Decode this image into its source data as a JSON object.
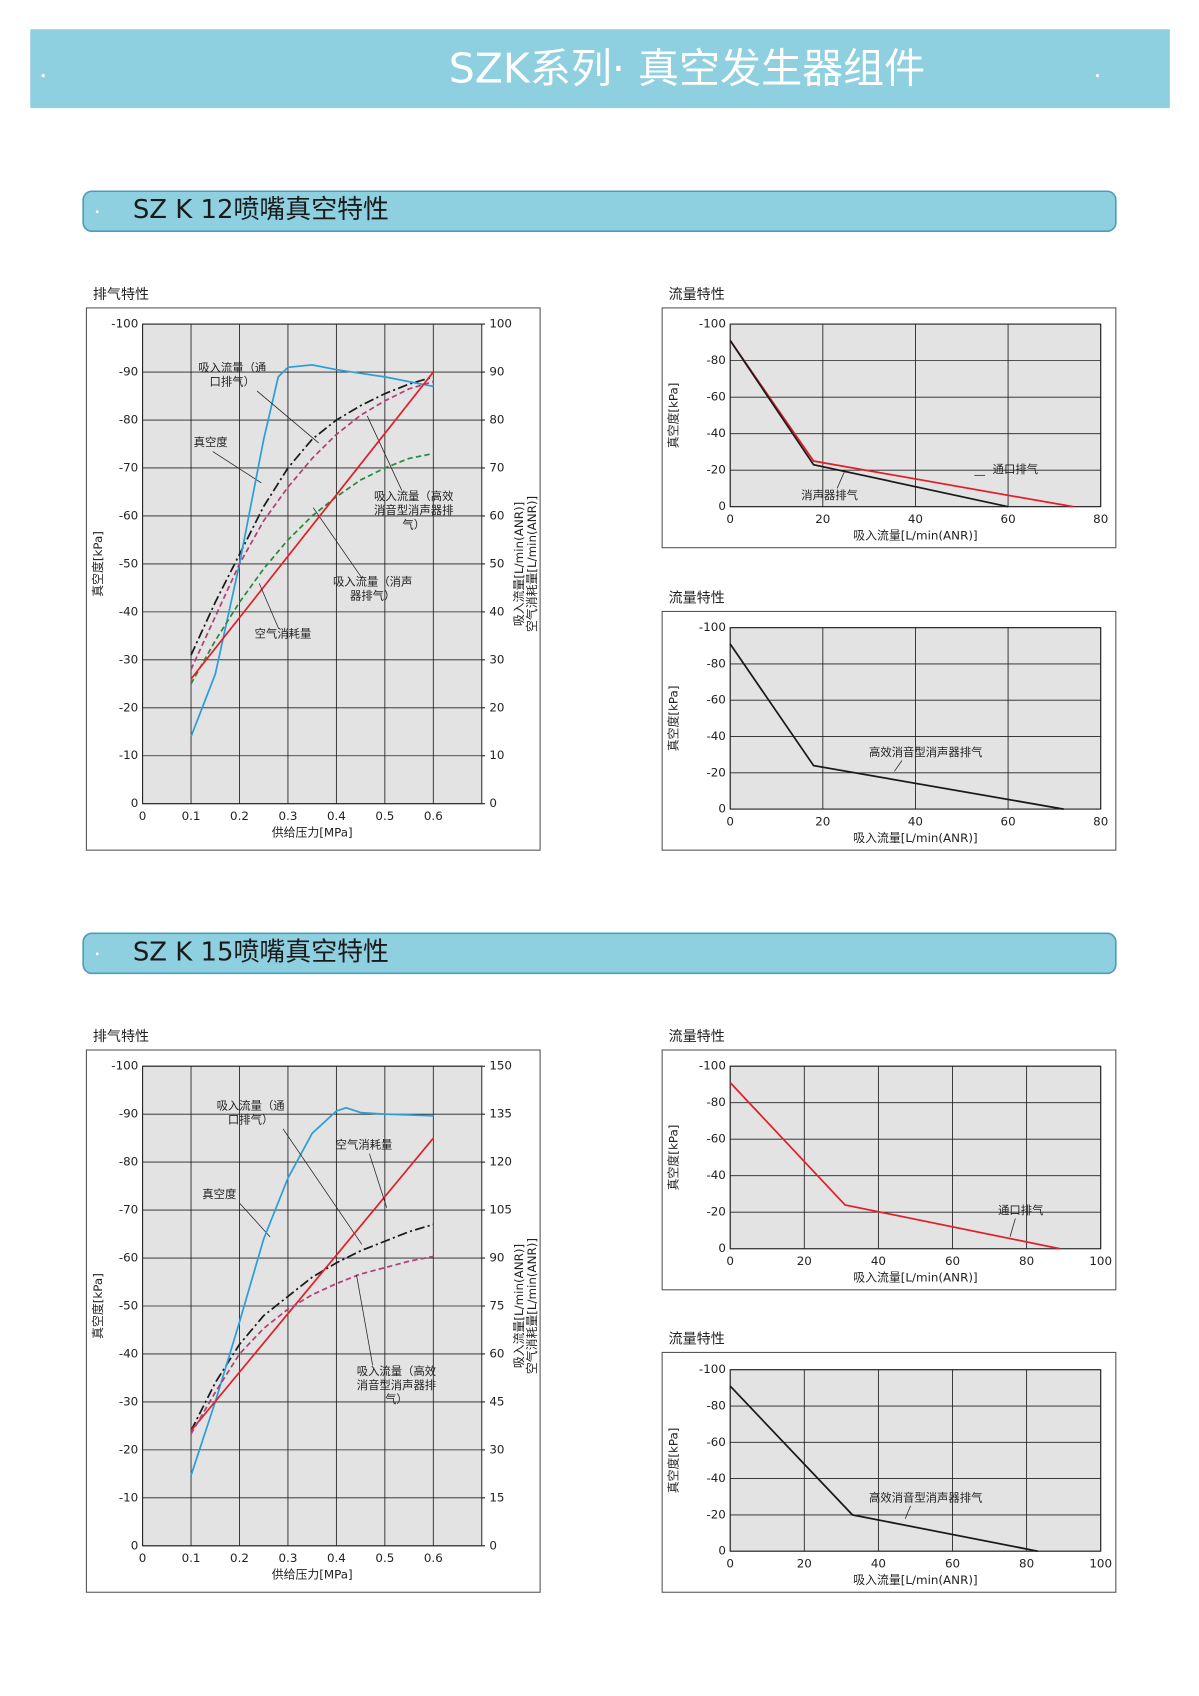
{
  "header": {
    "title": "SZK系列· 真空发生器组件"
  },
  "sections": [
    {
      "title": "SZ K 12喷嘴真空特性"
    },
    {
      "title": "SZ K 15喷嘴真空特性"
    }
  ],
  "chart_data": [
    {
      "type": "line",
      "title": "排气特性",
      "xlabel": "供给压力[MPa]",
      "ylabel": "真空度[kPa]",
      "y2labels": [
        "吸入流量[L/min(ANR)]",
        "空气消耗量[L/min(ANR)]"
      ],
      "xlim": [
        0,
        0.7
      ],
      "xticks": [
        0,
        0.1,
        0.2,
        0.3,
        0.4,
        0.5,
        0.6
      ],
      "ylim": [
        0,
        -100
      ],
      "yticks": [
        0,
        -10,
        -20,
        -30,
        -40,
        -50,
        -60,
        -70,
        -80,
        -90,
        -100
      ],
      "y2lim": [
        0,
        100
      ],
      "y2ticks": [
        0,
        10,
        20,
        30,
        40,
        50,
        60,
        70,
        80,
        90,
        100
      ],
      "grid": true,
      "series": [
        {
          "name": "真空度",
          "color": "#1a1a1a",
          "linestyle": "dashdot",
          "x": [
            0.1,
            0.15,
            0.2,
            0.25,
            0.3,
            0.35,
            0.4,
            0.45,
            0.5,
            0.55,
            0.6
          ],
          "values": [
            -31,
            -42,
            -52,
            -62,
            -70,
            -76,
            -80,
            -83,
            -85.5,
            -87.5,
            -89
          ]
        },
        {
          "name": "吸入流量（通口排气）",
          "color": "#2a9fd8",
          "linestyle": "solid",
          "axis": "y2",
          "x": [
            0.1,
            0.15,
            0.2,
            0.25,
            0.28,
            0.3,
            0.35,
            0.4,
            0.5,
            0.6
          ],
          "values": [
            14,
            27,
            50,
            76,
            89,
            91,
            91.5,
            90.5,
            89,
            87
          ]
        },
        {
          "name": "吸入流量（高效消音型消声器排气）",
          "color": "#b0407a",
          "linestyle": "dashed",
          "axis": "y2",
          "x": [
            0.1,
            0.15,
            0.2,
            0.25,
            0.3,
            0.35,
            0.4,
            0.45,
            0.5,
            0.55,
            0.6
          ],
          "values": [
            28,
            39,
            50,
            59,
            66,
            72,
            77,
            81,
            84,
            86.5,
            88
          ]
        },
        {
          "name": "吸入流量（消声器排气）",
          "color": "#2a8a3a",
          "linestyle": "dashed",
          "axis": "y2",
          "x": [
            0.1,
            0.15,
            0.2,
            0.25,
            0.3,
            0.35,
            0.4,
            0.45,
            0.5,
            0.55,
            0.6
          ],
          "values": [
            25,
            34,
            42,
            49,
            55,
            60,
            64,
            67.5,
            70,
            72,
            73
          ]
        },
        {
          "name": "空气消耗量",
          "color": "#e0202a",
          "linestyle": "solid",
          "axis": "y2",
          "x": [
            0.1,
            0.6
          ],
          "values": [
            26,
            90
          ]
        }
      ]
    },
    {
      "type": "line",
      "title": "流量特性",
      "xlabel": "吸入流量[L/min(ANR)]",
      "ylabel": "真空度[kPa]",
      "xlim": [
        0,
        80
      ],
      "xticks": [
        0,
        20,
        40,
        60,
        80
      ],
      "ylim": [
        0,
        -100
      ],
      "yticks": [
        0,
        -20,
        -40,
        -60,
        -80,
        -100
      ],
      "grid": true,
      "series": [
        {
          "name": "通口排气",
          "color": "#e0202a",
          "linestyle": "solid",
          "x": [
            0,
            18,
            74
          ],
          "values": [
            -91,
            -25,
            0
          ]
        },
        {
          "name": "消声器排气",
          "color": "#1a1a1a",
          "linestyle": "solid",
          "x": [
            0,
            18,
            60
          ],
          "values": [
            -91,
            -23,
            0
          ]
        }
      ]
    },
    {
      "type": "line",
      "title": "流量特性",
      "xlabel": "吸入流量[L/min(ANR)]",
      "ylabel": "真空度[kPa]",
      "xlim": [
        0,
        80
      ],
      "xticks": [
        0,
        20,
        40,
        60,
        80
      ],
      "ylim": [
        0,
        -100
      ],
      "yticks": [
        0,
        -20,
        -40,
        -60,
        -80,
        -100
      ],
      "grid": true,
      "series": [
        {
          "name": "高效消音型消声器排气",
          "color": "#1a1a1a",
          "linestyle": "solid",
          "x": [
            0,
            18,
            72
          ],
          "values": [
            -91,
            -24,
            0
          ]
        }
      ]
    },
    {
      "type": "line",
      "title": "排气特性",
      "xlabel": "供给压力[MPa]",
      "ylabel": "真空度[kPa]",
      "y2labels": [
        "吸入流量[L/min(ANR)]",
        "空气消耗量[L/min(ANR)]"
      ],
      "xlim": [
        0,
        0.7
      ],
      "xticks": [
        0,
        0.1,
        0.2,
        0.3,
        0.4,
        0.5,
        0.6
      ],
      "ylim": [
        0,
        -100
      ],
      "yticks": [
        0,
        -10,
        -20,
        -30,
        -40,
        -50,
        -60,
        -70,
        -80,
        -90,
        -100
      ],
      "y2lim": [
        0,
        150
      ],
      "y2ticks": [
        0,
        15,
        30,
        45,
        60,
        75,
        90,
        105,
        120,
        135,
        150
      ],
      "grid": true,
      "series": [
        {
          "name": "真空度",
          "color": "#1a1a1a",
          "linestyle": "dashdot",
          "x": [
            0.1,
            0.15,
            0.2,
            0.25,
            0.3,
            0.35,
            0.4,
            0.45,
            0.5,
            0.55,
            0.6
          ],
          "values": [
            -24,
            -34,
            -42,
            -48,
            -52,
            -56,
            -59,
            -61.5,
            -63.5,
            -65.5,
            -67
          ]
        },
        {
          "name": "吸入流量（通口排气）",
          "color": "#2a9fd8",
          "linestyle": "solid",
          "axis": "y2",
          "x": [
            0.1,
            0.15,
            0.2,
            0.25,
            0.3,
            0.35,
            0.4,
            0.42,
            0.45,
            0.5,
            0.6
          ],
          "values": [
            22,
            45,
            70,
            96,
            115,
            129,
            136,
            137,
            135.5,
            135,
            134.5
          ]
        },
        {
          "name": "空气消耗量",
          "color": "#e0202a",
          "linestyle": "solid",
          "axis": "y2",
          "x": [
            0.1,
            0.6
          ],
          "values": [
            36,
            127.5
          ]
        },
        {
          "name": "吸入流量（高效消音型消声器排气）",
          "color": "#b0407a",
          "linestyle": "dashed",
          "axis": "y2",
          "x": [
            0.1,
            0.15,
            0.2,
            0.25,
            0.3,
            0.35,
            0.4,
            0.45,
            0.5,
            0.55,
            0.6
          ],
          "values": [
            35,
            48,
            60,
            68,
            74,
            78.5,
            82,
            85,
            87,
            89,
            90.5
          ]
        }
      ]
    },
    {
      "type": "line",
      "title": "流量特性",
      "xlabel": "吸入流量[L/min(ANR)]",
      "ylabel": "真空度[kPa]",
      "xlim": [
        0,
        100
      ],
      "xticks": [
        0,
        20,
        40,
        60,
        80,
        100
      ],
      "ylim": [
        0,
        -100
      ],
      "yticks": [
        0,
        -20,
        -40,
        -60,
        -80,
        -100
      ],
      "grid": true,
      "series": [
        {
          "name": "通口排气",
          "color": "#e0202a",
          "linestyle": "solid",
          "x": [
            0,
            31,
            89
          ],
          "values": [
            -91,
            -24,
            0
          ]
        }
      ]
    },
    {
      "type": "line",
      "title": "流量特性",
      "xlabel": "吸入流量[L/min(ANR)]",
      "ylabel": "真空度[kPa]",
      "xlim": [
        0,
        100
      ],
      "xticks": [
        0,
        20,
        40,
        60,
        80,
        100
      ],
      "ylim": [
        0,
        -100
      ],
      "yticks": [
        0,
        -20,
        -40,
        -60,
        -80,
        -100
      ],
      "grid": true,
      "series": [
        {
          "name": "高效消音型消声器排气",
          "color": "#1a1a1a",
          "linestyle": "solid",
          "x": [
            0,
            33,
            83
          ],
          "values": [
            -91,
            -20,
            0
          ]
        }
      ]
    }
  ]
}
